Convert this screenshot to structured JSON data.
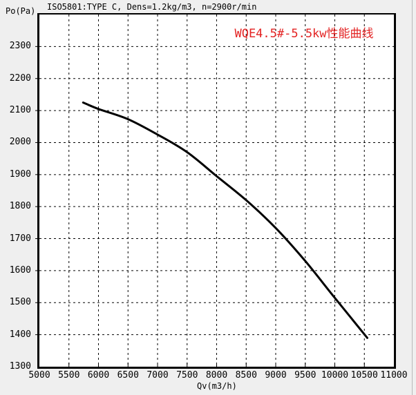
{
  "window": {
    "background": "#efefef",
    "plot_background": "#ffffff",
    "edge_line_color": "#b8b8b8"
  },
  "header": {
    "conditions": "ISO5801:TYPE C, Dens=1.2kg/m3, n=2900r/min"
  },
  "chart_data": {
    "type": "line",
    "title": "WQE4.5#-5.5kw性能曲线",
    "title_color": "#e32222",
    "xlabel": "Qv(m3/h)",
    "ylabel": "Po(Pa)",
    "xlim": [
      5000,
      11000
    ],
    "ylim": [
      1300,
      2400
    ],
    "x_ticks": [
      5000,
      5500,
      6000,
      6500,
      7000,
      7500,
      8000,
      8500,
      9000,
      9500,
      10000,
      10500,
      11000
    ],
    "y_ticks": [
      1300,
      1400,
      1500,
      1600,
      1700,
      1800,
      1900,
      2000,
      2100,
      2200,
      2300
    ],
    "grid": "dashed",
    "grid_color": "#000000",
    "axis_color": "#000000",
    "legend": "none",
    "series": [
      {
        "name": "performance-curve",
        "color": "#000000",
        "line_width": 3,
        "x": [
          5740,
          6000,
          6500,
          7000,
          7500,
          8000,
          8500,
          9000,
          9500,
          10000,
          10550
        ],
        "y": [
          2125,
          2105,
          2073,
          2025,
          1970,
          1895,
          1820,
          1733,
          1630,
          1515,
          1390
        ]
      }
    ]
  }
}
